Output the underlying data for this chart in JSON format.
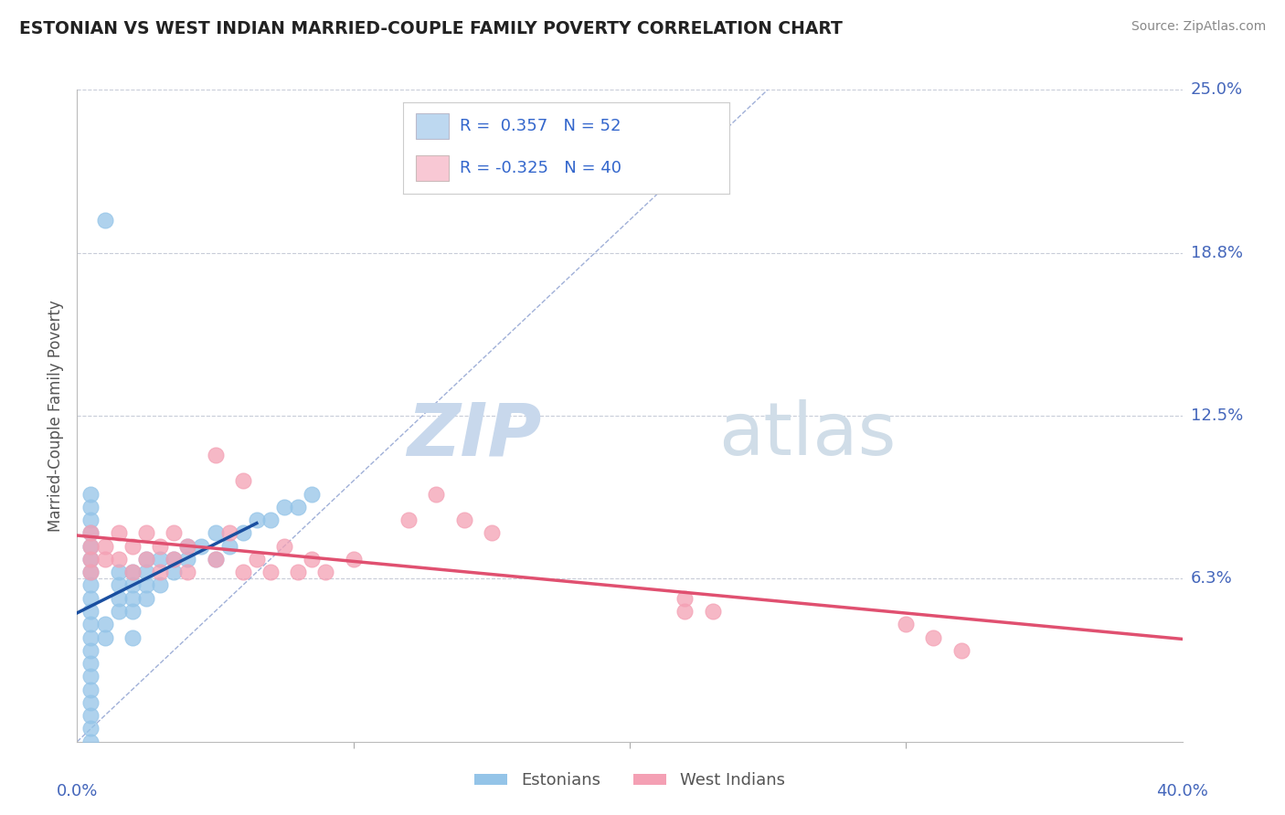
{
  "title": "ESTONIAN VS WEST INDIAN MARRIED-COUPLE FAMILY POVERTY CORRELATION CHART",
  "source": "Source: ZipAtlas.com",
  "ylabel": "Married-Couple Family Poverty",
  "xlim": [
    0.0,
    0.4
  ],
  "ylim": [
    0.0,
    0.25
  ],
  "ytick_labels_right": [
    "25.0%",
    "18.8%",
    "12.5%",
    "6.3%"
  ],
  "ytick_vals_right": [
    0.25,
    0.1875,
    0.125,
    0.0625
  ],
  "color_estonian": "#94C4E8",
  "color_westindian": "#F4A0B4",
  "trendline_estonian_color": "#1A4FA0",
  "trendline_westindian_color": "#E05070",
  "diagonal_color": "#A0B0D8",
  "background_color": "#FFFFFF",
  "grid_color": "#C8CCD8",
  "watermark_color": "#DCE8F2",
  "title_color": "#222222",
  "axis_label_color": "#555555",
  "tick_label_color": "#4466BB",
  "source_color": "#888888",
  "legend_box_color_estonian": "#BDD8F0",
  "legend_box_color_westindian": "#F8C8D4",
  "legend_text_color": "#3366CC",
  "legend_label_estonian": "Estonians",
  "legend_label_westindian": "West Indians",
  "estonian_x": [
    0.005,
    0.005,
    0.005,
    0.005,
    0.005,
    0.005,
    0.005,
    0.005,
    0.005,
    0.005,
    0.005,
    0.005,
    0.005,
    0.005,
    0.005,
    0.005,
    0.005,
    0.005,
    0.005,
    0.005,
    0.01,
    0.01,
    0.015,
    0.015,
    0.015,
    0.015,
    0.02,
    0.02,
    0.02,
    0.02,
    0.02,
    0.025,
    0.025,
    0.025,
    0.025,
    0.03,
    0.03,
    0.035,
    0.035,
    0.04,
    0.04,
    0.045,
    0.05,
    0.05,
    0.055,
    0.06,
    0.065,
    0.07,
    0.075,
    0.08,
    0.085,
    0.01
  ],
  "estonian_y": [
    0.0,
    0.005,
    0.01,
    0.015,
    0.02,
    0.025,
    0.03,
    0.035,
    0.04,
    0.045,
    0.05,
    0.055,
    0.06,
    0.065,
    0.07,
    0.075,
    0.08,
    0.085,
    0.09,
    0.095,
    0.04,
    0.045,
    0.05,
    0.055,
    0.06,
    0.065,
    0.04,
    0.05,
    0.055,
    0.06,
    0.065,
    0.055,
    0.06,
    0.065,
    0.07,
    0.06,
    0.07,
    0.065,
    0.07,
    0.07,
    0.075,
    0.075,
    0.07,
    0.08,
    0.075,
    0.08,
    0.085,
    0.085,
    0.09,
    0.09,
    0.095,
    0.2
  ],
  "westindian_x": [
    0.005,
    0.005,
    0.005,
    0.005,
    0.01,
    0.01,
    0.015,
    0.015,
    0.02,
    0.02,
    0.025,
    0.025,
    0.03,
    0.03,
    0.035,
    0.035,
    0.04,
    0.04,
    0.05,
    0.055,
    0.06,
    0.065,
    0.07,
    0.075,
    0.08,
    0.085,
    0.09,
    0.1,
    0.12,
    0.13,
    0.14,
    0.15,
    0.22,
    0.22,
    0.23,
    0.3,
    0.31,
    0.32,
    0.05,
    0.06
  ],
  "westindian_y": [
    0.065,
    0.07,
    0.075,
    0.08,
    0.07,
    0.075,
    0.07,
    0.08,
    0.065,
    0.075,
    0.07,
    0.08,
    0.065,
    0.075,
    0.07,
    0.08,
    0.065,
    0.075,
    0.07,
    0.08,
    0.065,
    0.07,
    0.065,
    0.075,
    0.065,
    0.07,
    0.065,
    0.07,
    0.085,
    0.095,
    0.085,
    0.08,
    0.05,
    0.055,
    0.05,
    0.045,
    0.04,
    0.035,
    0.11,
    0.1
  ]
}
